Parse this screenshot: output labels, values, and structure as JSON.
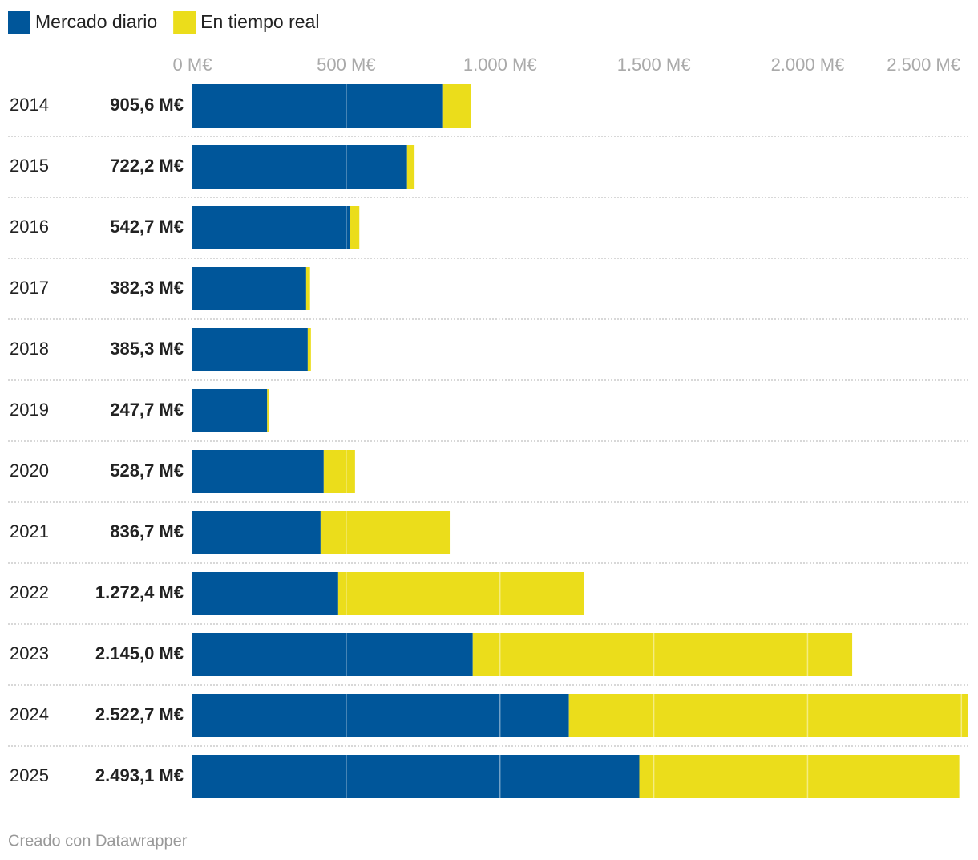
{
  "chart_data": {
    "type": "stacked-bar-horizontal",
    "categories": [
      "2014",
      "2015",
      "2016",
      "2017",
      "2018",
      "2019",
      "2020",
      "2021",
      "2022",
      "2023",
      "2024",
      "2025"
    ],
    "series": [
      {
        "name": "Mercado diario",
        "color": "#00569a",
        "values": [
          812.5,
          697.9,
          513,
          369.8,
          375,
          243,
          427,
          416.7,
          474,
          911.5,
          1224,
          1453
        ]
      },
      {
        "name": "En tiempo real",
        "color": "#ebdd1b",
        "values": [
          93.1,
          24.3,
          29.7,
          12.5,
          10.3,
          4.7,
          101.7,
          420,
          798.4,
          1233.5,
          1298.7,
          1040.1
        ]
      }
    ],
    "totals": {
      "values": [
        905.6,
        722.2,
        542.7,
        382.3,
        385.3,
        247.7,
        528.7,
        836.7,
        1272.4,
        2145.0,
        2522.7,
        2493.1
      ],
      "value_labels": [
        "905,6 M€",
        "722,2 M€",
        "542,7 M€",
        "382,3 M€",
        "385,3 M€",
        "247,7 M€",
        "528,7 M€",
        "836,7 M€",
        "1.272,4 M€",
        "2.145,0 M€",
        "2.522,7 M€",
        "2.493,1 M€"
      ]
    },
    "xlim": [
      0,
      2522.7
    ],
    "xticks": [
      {
        "value": 0,
        "label": "0 M€"
      },
      {
        "value": 500,
        "label": "500 M€"
      },
      {
        "value": 1000,
        "label": "1.000 M€"
      },
      {
        "value": 1500,
        "label": "1.500 M€"
      },
      {
        "value": 2000,
        "label": "2.000 M€"
      },
      {
        "value": 2500,
        "label": "2.500 M€"
      }
    ],
    "grid": true,
    "footer": "Creado con Datawrapper"
  }
}
